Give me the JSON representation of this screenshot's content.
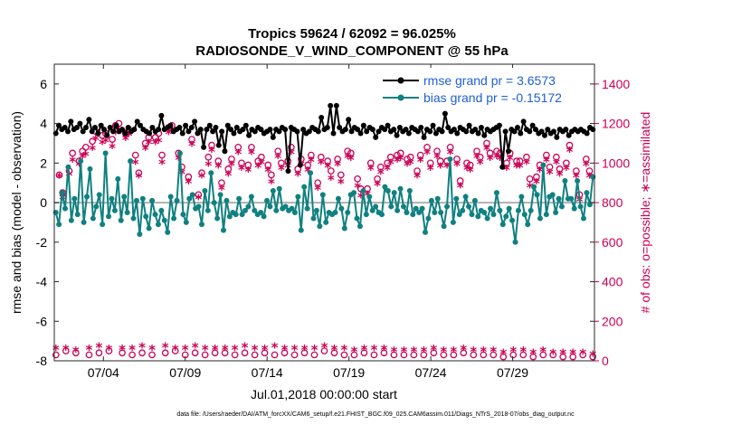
{
  "chart_data": {
    "type": "line",
    "title": "Tropics 59624 / 62092 = 96.025%",
    "subtitle": "RADIOSONDE_V_WIND_COMPONENT @ 55 hPa",
    "xlabel": "Jul.01,2018 00:00:00 start",
    "ylabel": "rmse and bias (model - observation)",
    "y2label": "# of obs: o=possible; ∗=assimilated",
    "xlim": [
      0,
      33
    ],
    "ylim": [
      -8,
      7
    ],
    "y2lim": [
      0,
      1500
    ],
    "xticks": [
      3,
      8,
      13,
      18,
      23,
      28
    ],
    "xtick_labels": [
      "07/04",
      "07/09",
      "07/14",
      "07/19",
      "07/24",
      "07/29"
    ],
    "yticks": [
      -8,
      -6,
      -4,
      -2,
      0,
      2,
      4,
      6
    ],
    "y2ticks": [
      0,
      200,
      400,
      600,
      800,
      1000,
      1200,
      1400
    ],
    "footer": "data file: /Users/raeder/DAI/ATM_forcXX/CAM6_setup/f.e21.FHIST_BGC.f09_025.CAM6assim.011/Diags_NTrS_2018-07/obs_diag_output.nc",
    "colors": {
      "rmse": "#000000",
      "bias": "#108080",
      "obs": "#cc0055",
      "zero_line": "#b0b0b0"
    },
    "legend_position": "top-right",
    "series": [
      {
        "name": "rmse",
        "legend": "rmse grand pr = 3.6573",
        "axis": "left",
        "values": [
          3.5,
          3.9,
          3.7,
          3.8,
          3.6,
          4.1,
          3.7,
          3.8,
          4.0,
          3.6,
          3.8,
          4.2,
          3.6,
          3.8,
          3.5,
          3.9,
          3.7,
          3.4,
          3.8,
          3.6,
          3.9,
          3.6,
          3.7,
          3.5,
          3.8,
          3.6,
          3.7,
          4.1,
          3.9,
          3.7,
          3.6,
          3.5,
          3.8,
          3.6,
          3.7,
          4.4,
          3.7,
          3.8,
          3.9,
          3.6,
          3.7,
          3.8,
          3.5,
          3.9,
          3.6,
          3.8,
          4.1,
          3.5,
          3.7,
          2.8,
          3.7,
          3.9,
          3.6,
          3.8,
          2.9,
          3.6,
          2.6,
          3.9,
          3.7,
          3.5,
          3.8,
          3.6,
          3.7,
          3.9,
          3.4,
          3.7,
          3.6,
          3.8,
          3.7,
          3.5,
          3.6,
          3.7,
          3.3,
          3.7,
          3.6,
          3.8,
          3.7,
          1.6,
          3.8,
          3.7,
          3.6,
          1.9,
          3.7,
          3.5,
          3.6,
          3.8,
          3.7,
          3.6,
          4.3,
          3.7,
          3.8,
          4.9,
          3.5,
          4.9,
          3.8,
          3.6,
          3.7,
          4.2,
          3.6,
          3.8,
          3.7,
          3.5,
          3.9,
          3.6,
          3.8,
          3.7,
          3.3,
          3.6,
          3.8,
          3.7,
          3.9,
          3.6,
          3.7,
          3.4,
          3.8,
          3.6,
          3.7,
          3.5,
          3.8,
          3.7,
          3.6,
          3.8,
          3.3,
          3.7,
          3.6,
          3.9,
          3.5,
          3.7,
          3.6,
          4.5,
          3.8,
          3.6,
          3.7,
          3.5,
          3.8,
          3.7,
          3.6,
          3.9,
          3.6,
          3.7,
          3.5,
          3.8,
          3.4,
          3.7,
          3.6,
          3.7,
          3.8,
          3.9,
          1.8,
          3.6,
          2.6,
          3.7,
          3.6,
          3.8,
          3.5,
          4.1,
          3.7,
          3.6,
          3.9,
          3.7,
          3.5,
          3.6,
          3.4,
          3.7,
          3.5,
          3.6,
          3.3,
          3.7,
          3.6,
          3.7,
          3.4,
          3.6,
          3.7,
          3.6,
          3.7,
          3.6,
          3.5,
          3.8,
          3.7
        ]
      },
      {
        "name": "bias",
        "legend": "bias grand pr = -0.15172",
        "axis": "left",
        "values": [
          -0.5,
          -1.1,
          0.5,
          -0.3,
          1.8,
          -0.9,
          0.2,
          -0.6,
          2.1,
          -1.0,
          0.3,
          1.7,
          -0.8,
          -0.2,
          0.4,
          -1.1,
          2.5,
          -0.7,
          0.2,
          -0.4,
          1.2,
          -0.9,
          0.3,
          -0.5,
          2.1,
          -0.8,
          0.1,
          -1.6,
          0.2,
          -0.7,
          -1.3,
          0.1,
          -0.6,
          -1.1,
          -0.4,
          -0.9,
          -1.5,
          0.3,
          -0.8,
          0.1,
          2.5,
          -0.6,
          -1.0,
          0.2,
          0.4,
          -0.3,
          -0.2,
          -1.1,
          0.6,
          -0.4,
          1.5,
          0.0,
          -0.8,
          0.4,
          -1.4,
          0.1,
          -0.7,
          -0.5,
          -0.6,
          0.2,
          -0.6,
          -0.4,
          -0.2,
          0.3,
          -0.4,
          -0.6,
          -0.5,
          -0.7,
          0.1,
          -0.2,
          0.6,
          -0.4,
          0.7,
          -0.3,
          -0.2,
          -0.4,
          -0.3,
          -0.5,
          0.3,
          -1.4,
          0.8,
          -0.3,
          1.5,
          -0.8,
          -0.4,
          -1.2,
          0.4,
          -1.0,
          -0.5,
          -0.6,
          -0.5,
          0.2,
          -0.3,
          -1.3,
          -0.5,
          0.4,
          0.5,
          -0.8,
          -1.2,
          0.6,
          -0.6,
          0.3,
          -0.4,
          -0.2,
          -0.5,
          -0.6,
          0.8,
          0.6,
          -0.2,
          0.5,
          -0.4,
          0.7,
          -0.2,
          -0.5,
          0.6,
          -0.6,
          -0.3,
          -0.5,
          -0.3,
          -1.5,
          -0.8,
          0.1,
          -0.5,
          0.2,
          -0.5,
          -1.2,
          -0.2,
          2.2,
          -1.0,
          0.2,
          -0.6,
          -0.4,
          0.3,
          -0.2,
          -0.6,
          0.1,
          -0.7,
          -0.4,
          -0.5,
          -0.8,
          -0.3,
          -0.6,
          0.5,
          -0.4,
          -1.1,
          -0.7,
          -0.3,
          -0.9,
          -2.0,
          -0.4,
          0.3,
          -0.6,
          -1.1,
          -0.4,
          0.8,
          0.4,
          -0.8,
          1.9,
          -0.6,
          0.3,
          0.4,
          -0.5,
          0.2,
          -0.2,
          1.1,
          0.2,
          0.2,
          -0.3,
          1.1,
          -0.2,
          -0.8,
          0.5,
          -0.1,
          1.3
        ]
      },
      {
        "name": "obs possible",
        "marker": "o",
        "axis": "right",
        "values": [
          30,
          940,
          850,
          50,
          960,
          1050,
          40,
          1010,
          1060,
          1080,
          30,
          1110,
          1160,
          40,
          1140,
          1150,
          50,
          1120,
          1190,
          1200,
          40,
          1150,
          1170,
          30,
          1040,
          950,
          40,
          1100,
          1130,
          30,
          1130,
          1150,
          1040,
          40,
          1180,
          1190,
          50,
          1050,
          980,
          30,
          930,
          1120,
          40,
          840,
          950,
          30,
          1030,
          1090,
          40,
          1010,
          900,
          40,
          970,
          1020,
          30,
          1080,
          1000,
          40,
          990,
          1080,
          30,
          1010,
          1030,
          40,
          990,
          940,
          30,
          1060,
          1000,
          40,
          1010,
          1080,
          30,
          970,
          1020,
          40,
          990,
          1040,
          30,
          900,
          1030,
          50,
          1010,
          960,
          40,
          1020,
          940,
          30,
          1060,
          1050,
          30,
          920,
          870,
          40,
          870,
          1000,
          30,
          920,
          980,
          40,
          1000,
          1030,
          30,
          1040,
          1050,
          30,
          1020,
          1030,
          30,
          960,
          1040,
          30,
          1080,
          1000,
          40,
          1060,
          1010,
          30,
          1010,
          1080,
          30,
          1020,
          910,
          40,
          1000,
          990,
          30,
          1060,
          1030,
          30,
          1100,
          1050,
          30,
          1060,
          1050,
          20,
          1000,
          1050,
          30,
          1010,
          1010,
          30,
          1030,
          920,
          20,
          930,
          990,
          30,
          1040,
          980,
          30,
          1030,
          970,
          20,
          1000,
          1090,
          20,
          960,
          840,
          30,
          1020,
          960,
          20
        ]
      },
      {
        "name": "obs assimilated",
        "marker": "*",
        "axis": "right",
        "values": [
          60,
          930,
          820,
          60,
          940,
          1010,
          50,
          990,
          1030,
          1040,
          60,
          1070,
          1120,
          70,
          1100,
          1110,
          60,
          1080,
          1150,
          1160,
          60,
          1120,
          1140,
          60,
          1000,
          930,
          70,
          1070,
          1100,
          60,
          1100,
          1110,
          1000,
          70,
          1150,
          1160,
          60,
          1020,
          950,
          60,
          900,
          1090,
          70,
          820,
          930,
          60,
          990,
          1060,
          60,
          980,
          870,
          60,
          940,
          990,
          60,
          1050,
          970,
          70,
          960,
          1050,
          60,
          980,
          1000,
          60,
          960,
          900,
          70,
          1030,
          970,
          60,
          980,
          1050,
          60,
          940,
          990,
          60,
          960,
          1010,
          60,
          870,
          1000,
          70,
          980,
          920,
          60,
          990,
          900,
          60,
          1030,
          1020,
          50,
          880,
          830,
          60,
          840,
          970,
          60,
          890,
          950,
          60,
          970,
          1000,
          50,
          1010,
          1020,
          50,
          990,
          1000,
          50,
          930,
          1010,
          50,
          1050,
          970,
          60,
          1030,
          980,
          50,
          980,
          1050,
          50,
          990,
          880,
          60,
          970,
          960,
          50,
          1030,
          1000,
          50,
          1070,
          1020,
          50,
          1030,
          1020,
          40,
          970,
          1020,
          50,
          980,
          980,
          50,
          1000,
          880,
          40,
          900,
          960,
          50,
          1010,
          950,
          40,
          1000,
          940,
          40,
          970,
          1060,
          40,
          930,
          810,
          40,
          990,
          930,
          30
        ]
      }
    ]
  }
}
